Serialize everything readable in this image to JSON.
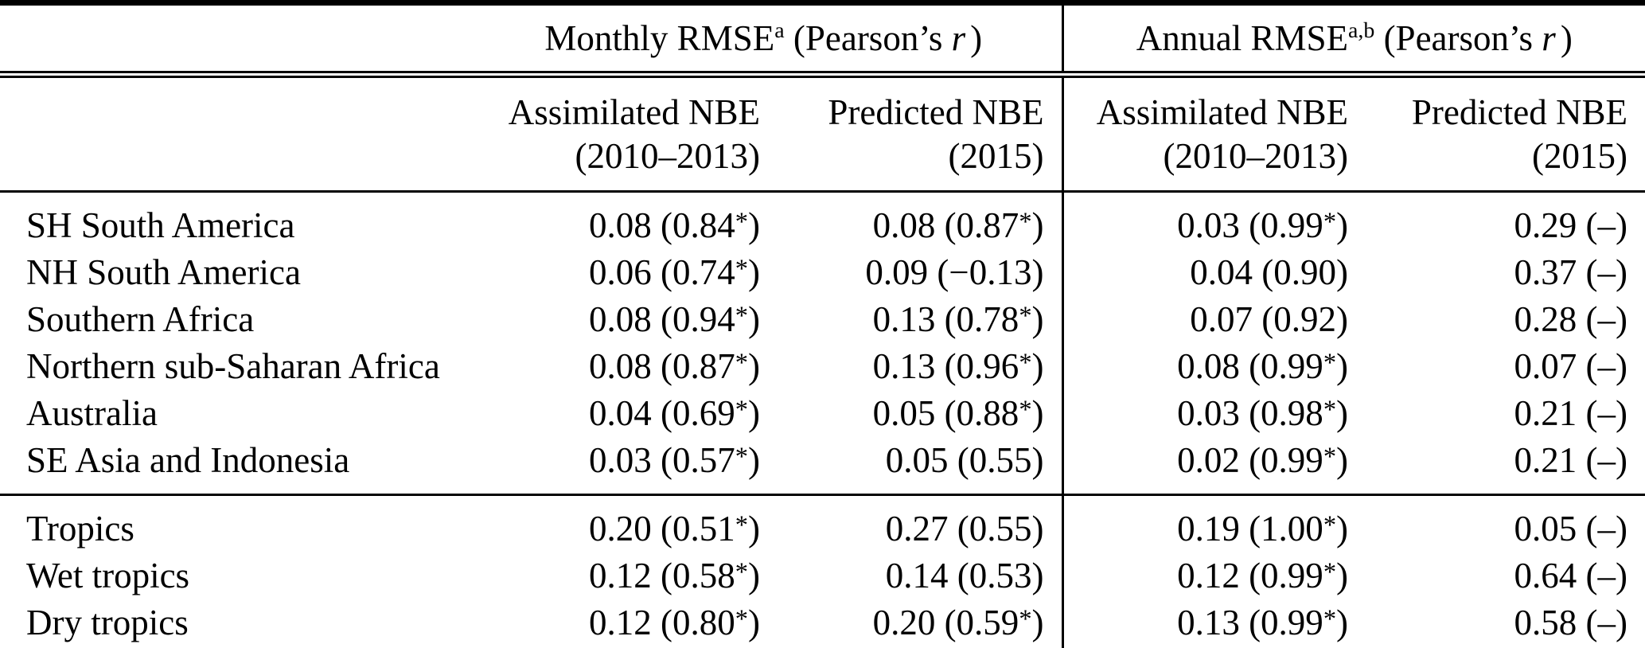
{
  "table": {
    "column_groups": [
      {
        "title": "Monthly RMSE",
        "superscript": "a",
        "mid": " (Pearson’s ",
        "stat_symbol": "r",
        "suffix": ")"
      },
      {
        "title": "Annual RMSE",
        "superscript": "a,b",
        "mid": " (Pearson’s ",
        "stat_symbol": "r",
        "suffix": ")"
      }
    ],
    "sub_columns": [
      {
        "line1": "Assimilated NBE",
        "line2": "(2010–2013)"
      },
      {
        "line1": "Predicted NBE",
        "line2": "(2015)"
      },
      {
        "line1": "Assimilated NBE",
        "line2": "(2010–2013)"
      },
      {
        "line1": "Predicted NBE",
        "line2": "(2015)"
      }
    ],
    "region_groups": [
      {
        "rows": [
          {
            "region": "SH South America",
            "values": [
              "0.08 (0.84*)",
              "0.08 (0.87*)",
              "0.03 (0.99*)",
              "0.29 (–)"
            ]
          },
          {
            "region": "NH South America",
            "values": [
              "0.06 (0.74*)",
              "0.09 (−0.13)",
              "0.04 (0.90)",
              "0.37 (–)"
            ]
          },
          {
            "region": "Southern Africa",
            "values": [
              "0.08 (0.94*)",
              "0.13 (0.78*)",
              "0.07 (0.92)",
              "0.28 (–)"
            ]
          },
          {
            "region": "Northern sub-Saharan Africa",
            "values": [
              "0.08 (0.87*)",
              "0.13 (0.96*)",
              "0.08 (0.99*)",
              "0.07 (–)"
            ]
          },
          {
            "region": "Australia",
            "values": [
              "0.04 (0.69*)",
              "0.05 (0.88*)",
              "0.03 (0.98*)",
              "0.21 (–)"
            ]
          },
          {
            "region": "SE Asia and Indonesia",
            "values": [
              "0.03 (0.57*)",
              "0.05 (0.55)",
              "0.02 (0.99*)",
              "0.21 (–)"
            ]
          }
        ]
      },
      {
        "rows": [
          {
            "region": "Tropics",
            "values": [
              "0.20 (0.51*)",
              "0.27 (0.55)",
              "0.19 (1.00*)",
              "0.05 (–)"
            ]
          },
          {
            "region": "Wet tropics",
            "values": [
              "0.12 (0.58*)",
              "0.14 (0.53)",
              "0.12 (0.99*)",
              "0.64 (–)"
            ]
          },
          {
            "region": "Dry tropics",
            "values": [
              "0.12 (0.80*)",
              "0.20 (0.59*)",
              "0.13 (0.99*)",
              "0.58 (–)"
            ]
          }
        ]
      }
    ]
  },
  "colors": {
    "background": "#ffffff",
    "text": "#000000",
    "rule": "#000000"
  }
}
